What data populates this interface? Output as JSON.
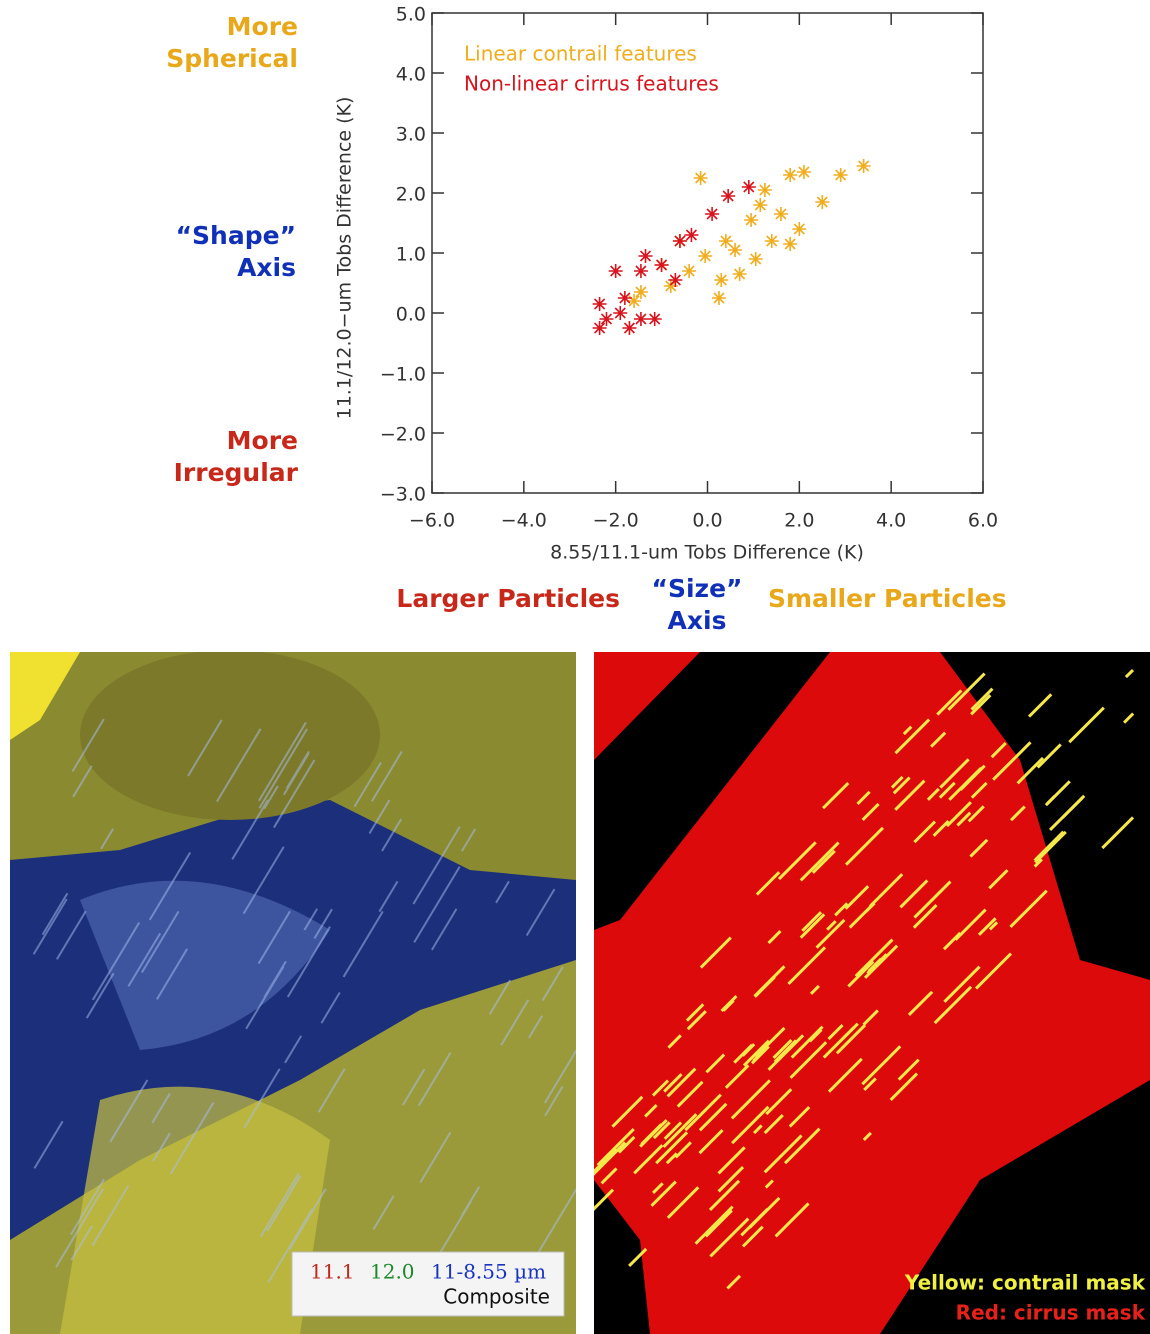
{
  "chart_data": {
    "type": "scatter",
    "x_label": "8.55/11.1-um Tobs Difference (K)",
    "y_label": "11.1/12.0−um Tobs Difference (K)",
    "xlim": [
      -6,
      6
    ],
    "ylim": [
      -3,
      5
    ],
    "xticks": [
      {
        "value": -6,
        "label": "−6.0"
      },
      {
        "value": -4,
        "label": "−4.0"
      },
      {
        "value": -2,
        "label": "−2.0"
      },
      {
        "value": 0,
        "label": "0.0"
      },
      {
        "value": 2,
        "label": "2.0"
      },
      {
        "value": 4,
        "label": "4.0"
      },
      {
        "value": 6,
        "label": "6.0"
      }
    ],
    "yticks": [
      {
        "value": -3,
        "label": "−3.0"
      },
      {
        "value": -2,
        "label": "−2.0"
      },
      {
        "value": -1,
        "label": "−1.0"
      },
      {
        "value": 0,
        "label": "0.0"
      },
      {
        "value": 1,
        "label": "1.0"
      },
      {
        "value": 2,
        "label": "2.0"
      },
      {
        "value": 3,
        "label": "3.0"
      },
      {
        "value": 4,
        "label": "4.0"
      },
      {
        "value": 5,
        "label": "5.0"
      }
    ],
    "series": [
      {
        "name": "Linear contrail features",
        "color": "#f0ad1e",
        "x": [
          -0.15,
          1.8,
          2.1,
          2.9,
          3.4,
          2.5,
          0.95,
          1.4,
          0.6,
          -0.6,
          -1.0,
          -0.4,
          0.3,
          0.25,
          -1.45,
          -1.6,
          1.15,
          1.6,
          2.0,
          0.7,
          -0.05,
          1.05,
          1.8,
          1.25,
          0.4,
          -0.8
        ],
        "values": [
          2.25,
          2.3,
          2.35,
          2.3,
          2.45,
          1.85,
          1.55,
          1.2,
          1.05,
          1.2,
          0.8,
          0.7,
          0.55,
          0.25,
          0.35,
          0.2,
          1.8,
          1.65,
          1.4,
          0.65,
          0.95,
          0.9,
          1.15,
          2.05,
          1.2,
          0.45
        ]
      },
      {
        "name": "Non-linear cirrus features",
        "color": "#d8141e",
        "x": [
          -2.2,
          -1.9,
          -1.45,
          -1.7,
          -2.35,
          -1.15,
          -2.0,
          -1.45,
          -1.35,
          -1.0,
          -0.6,
          0.1,
          0.45,
          0.9,
          -2.35,
          -1.8,
          -0.7,
          -0.35
        ],
        "values": [
          -0.1,
          0.0,
          -0.1,
          -0.25,
          0.15,
          -0.1,
          0.7,
          0.7,
          0.95,
          0.8,
          1.2,
          1.65,
          1.95,
          2.1,
          -0.25,
          0.25,
          0.55,
          1.3
        ]
      }
    ],
    "annotations": [
      {
        "lines": [
          "More",
          "Spherical"
        ],
        "color": "#e8a81a"
      },
      {
        "lines": [
          "“Shape”",
          "Axis"
        ],
        "color": "#1030b8"
      },
      {
        "lines": [
          "More",
          "Irregular"
        ],
        "color": "#c8281a"
      },
      {
        "lines": [
          "Larger Particles"
        ],
        "color": "#c8281a"
      },
      {
        "lines": [
          "“Size”",
          "Axis"
        ],
        "color": "#1030b8"
      },
      {
        "lines": [
          "Smaller Particles"
        ],
        "color": "#e8a81a"
      }
    ]
  },
  "images": {
    "composite": {
      "bands": [
        {
          "text": "11.1",
          "color": "#c0281e"
        },
        {
          "text": "12.0",
          "color": "#1a8a2a"
        },
        {
          "text": "11-8.55 µm",
          "color": "#1a34c0"
        }
      ],
      "caption": "Composite"
    },
    "mask": {
      "lines": [
        {
          "text": "Yellow: contrail mask",
          "color": "#f0f040"
        },
        {
          "text": "Red: cirrus mask",
          "color": "#e8201a"
        }
      ]
    }
  }
}
